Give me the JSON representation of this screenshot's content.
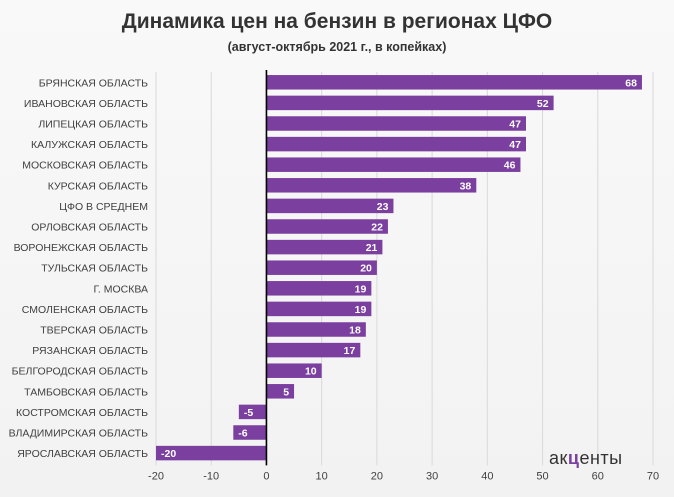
{
  "chart_data": {
    "type": "bar",
    "orientation": "horizontal",
    "title": "Динамика цен на бензин в регионах ЦФО",
    "subtitle": "(август-октябрь 2021 г., в копейках)",
    "categories": [
      "БРЯНСКАЯ ОБЛАСТЬ",
      "ИВАНОВСКАЯ ОБЛАСТЬ",
      "ЛИПЕЦКАЯ ОБЛАСТЬ",
      "КАЛУЖСКАЯ ОБЛАСТЬ",
      "МОСКОВСКАЯ ОБЛАСТЬ",
      "КУРСКАЯ ОБЛАСТЬ",
      "ЦФО В СРЕДНЕМ",
      "ОРЛОВСКАЯ ОБЛАСТЬ",
      "ВОРОНЕЖСКАЯ ОБЛАСТЬ",
      "ТУЛЬСКАЯ ОБЛАСТЬ",
      "Г. МОСКВА",
      "СМОЛЕНСКАЯ ОБЛАСТЬ",
      "ТВЕРСКАЯ ОБЛАСТЬ",
      "РЯЗАНСКАЯ ОБЛАСТЬ",
      "БЕЛГОРОДСКАЯ ОБЛАСТЬ",
      "ТАМБОВСКАЯ ОБЛАСТЬ",
      "КОСТРОМСКАЯ ОБЛАСТЬ",
      "ВЛАДИМИРСКАЯ ОБЛАСТЬ",
      "ЯРОСЛАВСКАЯ ОБЛАСТЬ"
    ],
    "values": [
      68,
      52,
      47,
      47,
      46,
      38,
      23,
      22,
      21,
      20,
      19,
      19,
      18,
      17,
      10,
      5,
      -5,
      -6,
      -20
    ],
    "xlim": [
      -20,
      70
    ],
    "xticks": [
      -20,
      -10,
      0,
      10,
      20,
      30,
      40,
      50,
      60,
      70
    ],
    "grid": true,
    "bar_color": "#7b3fa0",
    "gridline_color": "#d9d9d9",
    "axis_color": "#000000"
  },
  "logo": {
    "prefix": "ак",
    "mark": "ц",
    "suffix": "енты"
  }
}
